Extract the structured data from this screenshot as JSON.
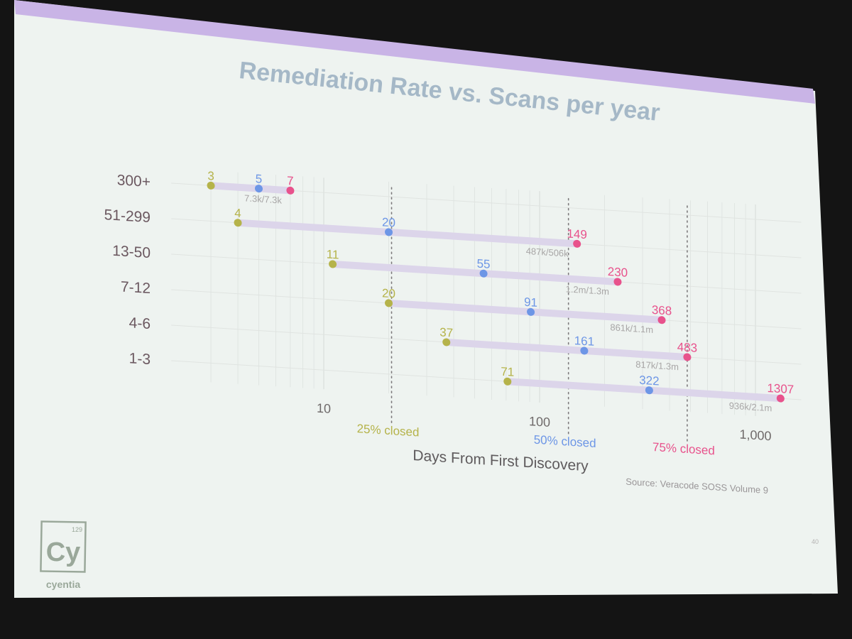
{
  "slide": {
    "title": "Remediation Rate vs. Scans per year",
    "source": "Source: Veracode SOSS Volume 9",
    "page_number": "40",
    "logo": {
      "symbol": "Cy",
      "number": "129",
      "name": "cyentia"
    }
  },
  "colors": {
    "q25": "#b5b34a",
    "q50": "#6d96e6",
    "q75": "#e8528c",
    "bar": "#dcd5ea"
  },
  "chart_data": {
    "type": "dot-range",
    "title": "Remediation Rate vs. Scans per year",
    "xlabel": "Days From First Discovery",
    "ylabel": "",
    "x_scale": "log",
    "xlim": [
      2.2,
      1400
    ],
    "x_ticks": [
      {
        "value": 10,
        "label": "10"
      },
      {
        "value": 100,
        "label": "100"
      },
      {
        "value": 1000,
        "label": "1,000"
      }
    ],
    "grid": true,
    "reference_lines": [
      {
        "label": "25% closed",
        "color_key": "q25"
      },
      {
        "label": "50% closed",
        "color_key": "q50"
      },
      {
        "label": "75% closed",
        "color_key": "q75"
      }
    ],
    "rows": [
      {
        "category": "300+",
        "q25": 3,
        "q50": 5,
        "q75": 7,
        "closed_label": "7.3k/7.3k"
      },
      {
        "category": "51-299",
        "q25": 4,
        "q50": 20,
        "q75": 149,
        "closed_label": "487k/506k"
      },
      {
        "category": "13-50",
        "q25": 11,
        "q50": 55,
        "q75": 230,
        "closed_label": "1.2m/1.3m"
      },
      {
        "category": "7-12",
        "q25": 20,
        "q50": 91,
        "q75": 368,
        "closed_label": "861k/1.1m"
      },
      {
        "category": "4-6",
        "q25": 37,
        "q50": 161,
        "q75": 483,
        "closed_label": "817k/1.3m"
      },
      {
        "category": "1-3",
        "q25": 71,
        "q50": 322,
        "q75": 1307,
        "closed_label": "936k/2.1m"
      }
    ]
  }
}
